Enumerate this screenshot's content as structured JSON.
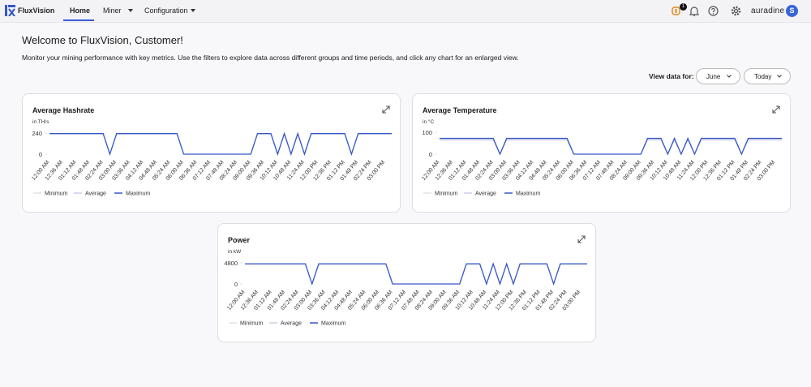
{
  "nav": {
    "logo": "FluxVision",
    "items": [
      "Home",
      "Miner",
      "Configuration"
    ],
    "badge": "1",
    "brand": "auradine",
    "avatar": "S"
  },
  "header": {
    "title": "Welcome to FluxVision, Customer!",
    "description": "Monitor your mining performance with key metrics. Use the filters to explore data across different groups and time periods, and click any chart for an enlarged view."
  },
  "filters": {
    "label": "View data for:",
    "month": "June",
    "period": "Today"
  },
  "chart_data": [
    {
      "type": "line",
      "title": "Average Hashrate",
      "y_label": "in TH/s",
      "categories": [
        "12:00 AM",
        null,
        "12:36 AM",
        null,
        "01:12 AM",
        null,
        "01:48 AM",
        null,
        "02:24 AM",
        null,
        "03:00 AM",
        null,
        "03:36 AM",
        null,
        "04:12 AM",
        null,
        "04:48 AM",
        null,
        "05:24 AM",
        null,
        "06:00 AM",
        null,
        "06:36 AM",
        null,
        "07:12 AM",
        null,
        "07:48 AM",
        null,
        "08:24 AM",
        null,
        "09:00 AM",
        null,
        "09:36 AM",
        null,
        "10:12 AM",
        null,
        "10:48 AM",
        null,
        "11:24 AM",
        null,
        "12:00 PM",
        null,
        "12:36 PM",
        null,
        "01:12 PM",
        null,
        "01:48 PM",
        null,
        "02:24 PM",
        null,
        "03:00 PM",
        null
      ],
      "series": [
        {
          "name": "Minimum",
          "color": "#e2e2e6",
          "values": [
            228,
            228,
            228,
            228,
            228,
            228,
            228,
            228,
            228,
            0,
            228,
            228,
            228,
            228,
            228,
            228,
            228,
            228,
            228,
            228,
            0,
            0,
            0,
            0,
            0,
            0,
            0,
            0,
            0,
            0,
            0,
            228,
            228,
            228,
            0,
            228,
            0,
            228,
            0,
            228,
            228,
            228,
            228,
            228,
            228,
            0,
            228,
            228,
            228,
            228,
            228,
            228
          ]
        },
        {
          "name": "Average",
          "color": "#c9cde6",
          "values": [
            232,
            232,
            232,
            232,
            232,
            232,
            232,
            232,
            232,
            0,
            232,
            232,
            232,
            232,
            232,
            232,
            232,
            232,
            232,
            232,
            0,
            0,
            0,
            0,
            0,
            0,
            0,
            0,
            0,
            0,
            0,
            232,
            232,
            232,
            0,
            232,
            0,
            232,
            0,
            232,
            232,
            232,
            232,
            232,
            232,
            0,
            232,
            232,
            232,
            232,
            232,
            232
          ]
        },
        {
          "name": "Maximum",
          "color": "#3657c9",
          "values": [
            235,
            235,
            235,
            235,
            235,
            235,
            235,
            235,
            235,
            0,
            235,
            235,
            235,
            235,
            235,
            235,
            235,
            235,
            235,
            235,
            0,
            0,
            0,
            0,
            0,
            0,
            0,
            0,
            0,
            0,
            0,
            235,
            235,
            235,
            0,
            235,
            0,
            235,
            0,
            235,
            235,
            235,
            235,
            235,
            235,
            0,
            235,
            235,
            235,
            235,
            235,
            235
          ]
        }
      ],
      "ylim": [
        0,
        250
      ],
      "yticks": [
        0,
        240
      ],
      "legend": "bottom-left"
    },
    {
      "type": "line",
      "title": "Average Temperature",
      "y_label": "in °C",
      "categories": [
        "12:00 AM",
        null,
        "12:36 AM",
        null,
        "01:12 AM",
        null,
        "01:48 AM",
        null,
        "02:24 AM",
        null,
        "03:00 AM",
        null,
        "03:36 AM",
        null,
        "04:12 AM",
        null,
        "04:48 AM",
        null,
        "05:24 AM",
        null,
        "06:00 AM",
        null,
        "06:36 AM",
        null,
        "07:12 AM",
        null,
        "07:48 AM",
        null,
        "08:24 AM",
        null,
        "09:00 AM",
        null,
        "09:36 AM",
        null,
        "10:12 AM",
        null,
        "10:48 AM",
        null,
        "11:24 AM",
        null,
        "12:00 PM",
        null,
        "12:36 PM",
        null,
        "01:12 PM",
        null,
        "01:48 PM",
        null,
        "02:24 PM",
        null,
        "03:00 PM",
        null
      ],
      "series": [
        {
          "name": "Minimum",
          "color": "#e2e2e6",
          "values": [
            62,
            62,
            62,
            62,
            62,
            62,
            62,
            62,
            62,
            0,
            62,
            62,
            62,
            62,
            62,
            62,
            62,
            62,
            62,
            62,
            0,
            0,
            0,
            0,
            0,
            0,
            0,
            0,
            0,
            0,
            0,
            62,
            62,
            62,
            0,
            62,
            0,
            62,
            0,
            62,
            62,
            62,
            62,
            62,
            62,
            0,
            62,
            62,
            62,
            62,
            62,
            62
          ]
        },
        {
          "name": "Average",
          "color": "#c9cde6",
          "values": [
            68,
            68,
            68,
            68,
            68,
            68,
            68,
            68,
            68,
            0,
            68,
            68,
            68,
            68,
            68,
            68,
            68,
            68,
            68,
            68,
            0,
            0,
            0,
            0,
            0,
            0,
            0,
            0,
            0,
            0,
            0,
            68,
            68,
            68,
            0,
            68,
            0,
            68,
            0,
            68,
            68,
            68,
            68,
            68,
            68,
            0,
            68,
            68,
            68,
            68,
            68,
            68
          ]
        },
        {
          "name": "Maximum",
          "color": "#3657c9",
          "values": [
            72,
            72,
            72,
            72,
            72,
            72,
            72,
            72,
            72,
            0,
            72,
            72,
            72,
            72,
            72,
            72,
            72,
            72,
            72,
            72,
            0,
            0,
            0,
            0,
            0,
            0,
            0,
            0,
            0,
            0,
            0,
            72,
            72,
            72,
            0,
            72,
            0,
            72,
            0,
            72,
            72,
            72,
            72,
            72,
            72,
            0,
            72,
            72,
            72,
            72,
            72,
            72
          ]
        }
      ],
      "ylim": [
        0,
        100
      ],
      "yticks": [
        0,
        100
      ],
      "legend": "bottom-left"
    },
    {
      "type": "line",
      "title": "Power",
      "y_label": "in kW",
      "categories": [
        "12:00 AM",
        null,
        "12:36 AM",
        null,
        "01:12 AM",
        null,
        "01:48 AM",
        null,
        "02:24 AM",
        null,
        "03:00 AM",
        null,
        "03:36 AM",
        null,
        "04:12 AM",
        null,
        "04:48 AM",
        null,
        "05:24 AM",
        null,
        "06:00 AM",
        null,
        "06:36 AM",
        null,
        "07:12 AM",
        null,
        "07:48 AM",
        null,
        "08:24 AM",
        null,
        "09:00 AM",
        null,
        "09:36 AM",
        null,
        "10:12 AM",
        null,
        "10:48 AM",
        null,
        "11:24 AM",
        null,
        "12:00 PM",
        null,
        "12:36 PM",
        null,
        "01:12 PM",
        null,
        "01:48 PM",
        null,
        "02:24 PM",
        null,
        "03:00 PM",
        null
      ],
      "series": [
        {
          "name": "Minimum",
          "color": "#e2e2e6",
          "values": [
            4500,
            4500,
            4500,
            4500,
            4500,
            4500,
            4500,
            4500,
            4500,
            4500,
            0,
            4500,
            4500,
            4500,
            4500,
            4500,
            4500,
            4500,
            4500,
            4500,
            4500,
            4500,
            0,
            0,
            0,
            0,
            0,
            0,
            0,
            0,
            0,
            0,
            0,
            4500,
            4500,
            4500,
            0,
            4500,
            0,
            4500,
            0,
            4500,
            4500,
            4500,
            4500,
            4500,
            0,
            4500,
            4500,
            4500,
            4500,
            4500
          ]
        },
        {
          "name": "Average",
          "color": "#c9cde6",
          "values": [
            4550,
            4550,
            4550,
            4550,
            4550,
            4550,
            4550,
            4550,
            4550,
            4550,
            0,
            4550,
            4550,
            4550,
            4550,
            4550,
            4550,
            4550,
            4550,
            4550,
            4550,
            4550,
            0,
            0,
            0,
            0,
            0,
            0,
            0,
            0,
            0,
            0,
            0,
            4550,
            4550,
            4550,
            0,
            4550,
            0,
            4550,
            0,
            4550,
            4550,
            4550,
            4550,
            4550,
            0,
            4550,
            4550,
            4550,
            4550,
            4550
          ]
        },
        {
          "name": "Maximum",
          "color": "#3657c9",
          "values": [
            4600,
            4600,
            4600,
            4600,
            4600,
            4600,
            4600,
            4600,
            4600,
            4600,
            0,
            4600,
            4600,
            4600,
            4600,
            4600,
            4600,
            4600,
            4600,
            4600,
            4600,
            4600,
            0,
            0,
            0,
            0,
            0,
            0,
            0,
            0,
            0,
            0,
            0,
            4600,
            4600,
            4600,
            0,
            4600,
            0,
            4600,
            0,
            4600,
            4600,
            4600,
            4600,
            4600,
            0,
            4600,
            4600,
            4600,
            4600,
            4600
          ]
        }
      ],
      "ylim": [
        0,
        5000
      ],
      "yticks": [
        0,
        4800
      ],
      "legend": "bottom-left"
    }
  ]
}
